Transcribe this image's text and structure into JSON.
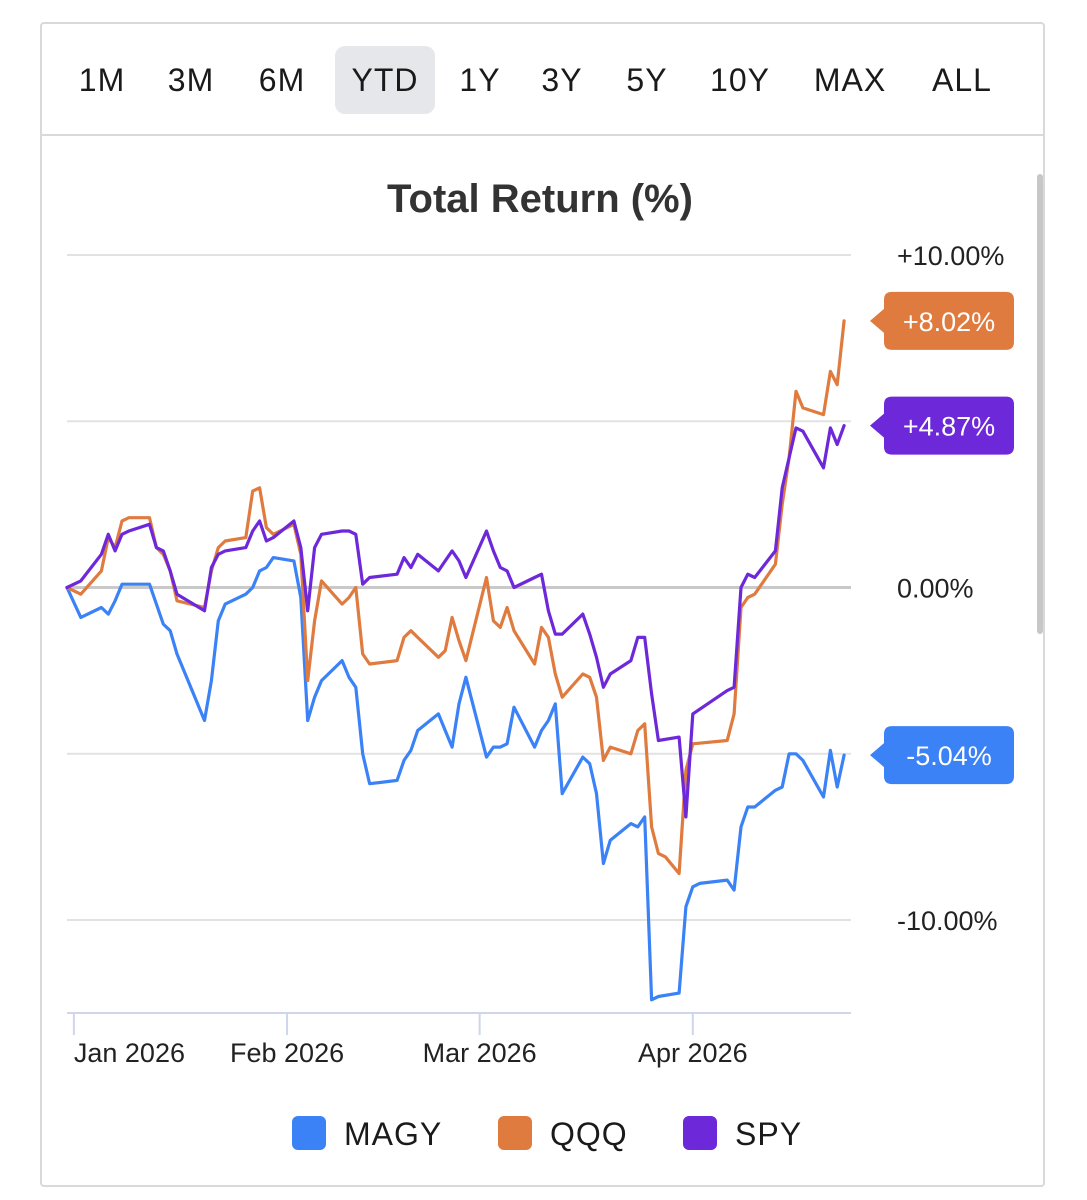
{
  "range_buttons": [
    {
      "label": "1M",
      "active": false
    },
    {
      "label": "3M",
      "active": false
    },
    {
      "label": "6M",
      "active": false
    },
    {
      "label": "YTD",
      "active": true
    },
    {
      "label": "1Y",
      "active": false
    },
    {
      "label": "3Y",
      "active": false
    },
    {
      "label": "5Y",
      "active": false
    },
    {
      "label": "10Y",
      "active": false
    },
    {
      "label": "MAX",
      "active": false
    },
    {
      "label": "ALL",
      "active": false
    }
  ],
  "chart_data": {
    "type": "line",
    "title": "Total Return (%)",
    "xlabel": "",
    "ylabel": "",
    "ylim": [
      -12.5,
      10.5
    ],
    "xlim": [
      "2025-12-31",
      "2026-04-24"
    ],
    "y_ticks": [
      {
        "value": 10,
        "label": "+10.00%"
      },
      {
        "value": 0,
        "label": "0.00%"
      },
      {
        "value": -10,
        "label": "-10.00%"
      }
    ],
    "gridlines": [
      10,
      5,
      0,
      -5,
      -10
    ],
    "x_ticks": [
      {
        "date": "2026-01-01",
        "label": "Jan 2026"
      },
      {
        "date": "2026-02-01",
        "label": "Feb 2026"
      },
      {
        "date": "2026-03-01",
        "label": "Mar 2026"
      },
      {
        "date": "2026-04-01",
        "label": "Apr 2026"
      }
    ],
    "legend_position": "bottom",
    "series": [
      {
        "name": "MAGY",
        "color": "#3b82f6",
        "end_label": "-5.04%",
        "points": [
          [
            "2025-12-31",
            0.0
          ],
          [
            "2026-01-02",
            -0.9
          ],
          [
            "2026-01-05",
            -0.6
          ],
          [
            "2026-01-06",
            -0.8
          ],
          [
            "2026-01-07",
            -0.4
          ],
          [
            "2026-01-08",
            0.1
          ],
          [
            "2026-01-09",
            0.1
          ],
          [
            "2026-01-12",
            0.1
          ],
          [
            "2026-01-13",
            -0.5
          ],
          [
            "2026-01-14",
            -1.1
          ],
          [
            "2026-01-15",
            -1.3
          ],
          [
            "2026-01-16",
            -2.0
          ],
          [
            "2026-01-20",
            -4.0
          ],
          [
            "2026-01-21",
            -2.8
          ],
          [
            "2026-01-22",
            -1.0
          ],
          [
            "2026-01-23",
            -0.5
          ],
          [
            "2026-01-26",
            -0.2
          ],
          [
            "2026-01-27",
            0.0
          ],
          [
            "2026-01-28",
            0.5
          ],
          [
            "2026-01-29",
            0.6
          ],
          [
            "2026-01-30",
            0.9
          ],
          [
            "2026-02-02",
            0.8
          ],
          [
            "2026-02-03",
            -0.3
          ],
          [
            "2026-02-04",
            -4.0
          ],
          [
            "2026-02-05",
            -3.3
          ],
          [
            "2026-02-06",
            -2.8
          ],
          [
            "2026-02-09",
            -2.2
          ],
          [
            "2026-02-10",
            -2.7
          ],
          [
            "2026-02-11",
            -3.0
          ],
          [
            "2026-02-12",
            -5.0
          ],
          [
            "2026-02-13",
            -5.9
          ],
          [
            "2026-02-17",
            -5.8
          ],
          [
            "2026-02-18",
            -5.2
          ],
          [
            "2026-02-19",
            -4.9
          ],
          [
            "2026-02-20",
            -4.3
          ],
          [
            "2026-02-23",
            -3.8
          ],
          [
            "2026-02-24",
            -4.3
          ],
          [
            "2026-02-25",
            -4.8
          ],
          [
            "2026-02-26",
            -3.5
          ],
          [
            "2026-02-27",
            -2.7
          ],
          [
            "2026-03-02",
            -5.1
          ],
          [
            "2026-03-03",
            -4.8
          ],
          [
            "2026-03-04",
            -4.8
          ],
          [
            "2026-03-05",
            -4.7
          ],
          [
            "2026-03-06",
            -3.6
          ],
          [
            "2026-03-09",
            -4.8
          ],
          [
            "2026-03-10",
            -4.3
          ],
          [
            "2026-03-11",
            -4.0
          ],
          [
            "2026-03-12",
            -3.5
          ],
          [
            "2026-03-13",
            -6.2
          ],
          [
            "2026-03-16",
            -5.1
          ],
          [
            "2026-03-17",
            -5.3
          ],
          [
            "2026-03-18",
            -6.2
          ],
          [
            "2026-03-19",
            -8.3
          ],
          [
            "2026-03-20",
            -7.6
          ],
          [
            "2026-03-23",
            -7.1
          ],
          [
            "2026-03-24",
            -7.2
          ],
          [
            "2026-03-25",
            -6.9
          ],
          [
            "2026-03-26",
            -12.4
          ],
          [
            "2026-03-27",
            -12.3
          ],
          [
            "2026-03-30",
            -12.2
          ],
          [
            "2026-03-31",
            -9.6
          ],
          [
            "2026-04-01",
            -9.0
          ],
          [
            "2026-04-02",
            -8.9
          ],
          [
            "2026-04-06",
            -8.8
          ],
          [
            "2026-04-07",
            -9.1
          ],
          [
            "2026-04-08",
            -7.2
          ],
          [
            "2026-04-09",
            -6.6
          ],
          [
            "2026-04-10",
            -6.6
          ],
          [
            "2026-04-13",
            -6.1
          ],
          [
            "2026-04-14",
            -6.0
          ],
          [
            "2026-04-15",
            -5.0
          ],
          [
            "2026-04-16",
            -5.0
          ],
          [
            "2026-04-17",
            -5.2
          ],
          [
            "2026-04-20",
            -6.3
          ],
          [
            "2026-04-21",
            -4.9
          ],
          [
            "2026-04-22",
            -6.0
          ],
          [
            "2026-04-23",
            -5.04
          ]
        ]
      },
      {
        "name": "QQQ",
        "color": "#e07b3f",
        "end_label": "+8.02%",
        "points": [
          [
            "2025-12-31",
            0.0
          ],
          [
            "2026-01-02",
            -0.2
          ],
          [
            "2026-01-05",
            0.5
          ],
          [
            "2026-01-06",
            1.5
          ],
          [
            "2026-01-07",
            1.2
          ],
          [
            "2026-01-08",
            2.0
          ],
          [
            "2026-01-09",
            2.1
          ],
          [
            "2026-01-12",
            2.1
          ],
          [
            "2026-01-13",
            1.2
          ],
          [
            "2026-01-14",
            1.0
          ],
          [
            "2026-01-15",
            0.5
          ],
          [
            "2026-01-16",
            -0.4
          ],
          [
            "2026-01-20",
            -0.6
          ],
          [
            "2026-01-21",
            0.5
          ],
          [
            "2026-01-22",
            1.2
          ],
          [
            "2026-01-23",
            1.4
          ],
          [
            "2026-01-26",
            1.5
          ],
          [
            "2026-01-27",
            2.9
          ],
          [
            "2026-01-28",
            3.0
          ],
          [
            "2026-01-29",
            1.8
          ],
          [
            "2026-01-30",
            1.6
          ],
          [
            "2026-02-02",
            1.9
          ],
          [
            "2026-02-03",
            1.0
          ],
          [
            "2026-02-04",
            -2.8
          ],
          [
            "2026-02-05",
            -1.0
          ],
          [
            "2026-02-06",
            0.2
          ],
          [
            "2026-02-09",
            -0.5
          ],
          [
            "2026-02-10",
            -0.3
          ],
          [
            "2026-02-11",
            0.0
          ],
          [
            "2026-02-12",
            -2.0
          ],
          [
            "2026-02-13",
            -2.3
          ],
          [
            "2026-02-17",
            -2.2
          ],
          [
            "2026-02-18",
            -1.5
          ],
          [
            "2026-02-19",
            -1.3
          ],
          [
            "2026-02-20",
            -1.5
          ],
          [
            "2026-02-23",
            -2.1
          ],
          [
            "2026-02-24",
            -1.9
          ],
          [
            "2026-02-25",
            -0.9
          ],
          [
            "2026-02-26",
            -1.6
          ],
          [
            "2026-02-27",
            -2.2
          ],
          [
            "2026-03-02",
            0.3
          ],
          [
            "2026-03-03",
            -1.0
          ],
          [
            "2026-03-04",
            -1.2
          ],
          [
            "2026-03-05",
            -0.6
          ],
          [
            "2026-03-06",
            -1.3
          ],
          [
            "2026-03-09",
            -2.3
          ],
          [
            "2026-03-10",
            -1.2
          ],
          [
            "2026-03-11",
            -1.5
          ],
          [
            "2026-03-12",
            -2.6
          ],
          [
            "2026-03-13",
            -3.3
          ],
          [
            "2026-03-16",
            -2.6
          ],
          [
            "2026-03-17",
            -2.7
          ],
          [
            "2026-03-18",
            -3.3
          ],
          [
            "2026-03-19",
            -5.2
          ],
          [
            "2026-03-20",
            -4.8
          ],
          [
            "2026-03-23",
            -5.0
          ],
          [
            "2026-03-24",
            -4.3
          ],
          [
            "2026-03-25",
            -4.1
          ],
          [
            "2026-03-26",
            -7.2
          ],
          [
            "2026-03-27",
            -8.0
          ],
          [
            "2026-03-28",
            -8.1
          ],
          [
            "2026-03-30",
            -8.6
          ],
          [
            "2026-03-31",
            -5.5
          ],
          [
            "2026-04-01",
            -4.7
          ],
          [
            "2026-04-06",
            -4.6
          ],
          [
            "2026-04-07",
            -3.8
          ],
          [
            "2026-04-08",
            -0.6
          ],
          [
            "2026-04-09",
            -0.3
          ],
          [
            "2026-04-10",
            -0.2
          ],
          [
            "2026-04-13",
            0.7
          ],
          [
            "2026-04-14",
            2.5
          ],
          [
            "2026-04-15",
            3.9
          ],
          [
            "2026-04-16",
            5.9
          ],
          [
            "2026-04-17",
            5.4
          ],
          [
            "2026-04-20",
            5.2
          ],
          [
            "2026-04-21",
            6.5
          ],
          [
            "2026-04-22",
            6.1
          ],
          [
            "2026-04-23",
            8.02
          ]
        ]
      },
      {
        "name": "SPY",
        "color": "#6d28d9",
        "end_label": "+4.87%",
        "points": [
          [
            "2025-12-31",
            0.0
          ],
          [
            "2026-01-02",
            0.2
          ],
          [
            "2026-01-05",
            1.0
          ],
          [
            "2026-01-06",
            1.6
          ],
          [
            "2026-01-07",
            1.1
          ],
          [
            "2026-01-08",
            1.6
          ],
          [
            "2026-01-09",
            1.7
          ],
          [
            "2026-01-12",
            1.9
          ],
          [
            "2026-01-13",
            1.2
          ],
          [
            "2026-01-14",
            1.1
          ],
          [
            "2026-01-15",
            0.5
          ],
          [
            "2026-01-16",
            -0.2
          ],
          [
            "2026-01-20",
            -0.7
          ],
          [
            "2026-01-21",
            0.6
          ],
          [
            "2026-01-22",
            1.0
          ],
          [
            "2026-01-23",
            1.1
          ],
          [
            "2026-01-26",
            1.2
          ],
          [
            "2026-01-27",
            1.7
          ],
          [
            "2026-01-28",
            2.0
          ],
          [
            "2026-01-29",
            1.4
          ],
          [
            "2026-01-30",
            1.5
          ],
          [
            "2026-02-02",
            2.0
          ],
          [
            "2026-02-03",
            1.2
          ],
          [
            "2026-02-04",
            -0.7
          ],
          [
            "2026-02-05",
            1.2
          ],
          [
            "2026-02-06",
            1.6
          ],
          [
            "2026-02-09",
            1.7
          ],
          [
            "2026-02-10",
            1.7
          ],
          [
            "2026-02-11",
            1.6
          ],
          [
            "2026-02-12",
            0.1
          ],
          [
            "2026-02-13",
            0.3
          ],
          [
            "2026-02-17",
            0.4
          ],
          [
            "2026-02-18",
            0.9
          ],
          [
            "2026-02-19",
            0.6
          ],
          [
            "2026-02-20",
            1.0
          ],
          [
            "2026-02-23",
            0.5
          ],
          [
            "2026-02-24",
            0.8
          ],
          [
            "2026-02-25",
            1.1
          ],
          [
            "2026-02-26",
            0.8
          ],
          [
            "2026-02-27",
            0.3
          ],
          [
            "2026-03-02",
            1.7
          ],
          [
            "2026-03-03",
            1.1
          ],
          [
            "2026-03-04",
            0.6
          ],
          [
            "2026-03-05",
            0.5
          ],
          [
            "2026-03-06",
            0.0
          ],
          [
            "2026-03-09",
            0.3
          ],
          [
            "2026-03-10",
            0.4
          ],
          [
            "2026-03-11",
            -0.7
          ],
          [
            "2026-03-12",
            -1.4
          ],
          [
            "2026-03-13",
            -1.4
          ],
          [
            "2026-03-16",
            -0.8
          ],
          [
            "2026-03-17",
            -1.4
          ],
          [
            "2026-03-18",
            -2.1
          ],
          [
            "2026-03-19",
            -3.0
          ],
          [
            "2026-03-20",
            -2.6
          ],
          [
            "2026-03-23",
            -2.2
          ],
          [
            "2026-03-24",
            -1.5
          ],
          [
            "2026-03-25",
            -1.5
          ],
          [
            "2026-03-26",
            -3.2
          ],
          [
            "2026-03-27",
            -4.6
          ],
          [
            "2026-03-30",
            -4.5
          ],
          [
            "2026-03-31",
            -6.9
          ],
          [
            "2026-04-01",
            -3.8
          ],
          [
            "2026-04-06",
            -3.1
          ],
          [
            "2026-04-07",
            -3.0
          ],
          [
            "2026-04-08",
            0.0
          ],
          [
            "2026-04-09",
            0.4
          ],
          [
            "2026-04-10",
            0.3
          ],
          [
            "2026-04-13",
            1.1
          ],
          [
            "2026-04-14",
            3.0
          ],
          [
            "2026-04-15",
            3.9
          ],
          [
            "2026-04-16",
            4.8
          ],
          [
            "2026-04-17",
            4.7
          ],
          [
            "2026-04-20",
            3.6
          ],
          [
            "2026-04-21",
            4.8
          ],
          [
            "2026-04-22",
            4.3
          ],
          [
            "2026-04-23",
            4.87
          ]
        ]
      }
    ]
  }
}
